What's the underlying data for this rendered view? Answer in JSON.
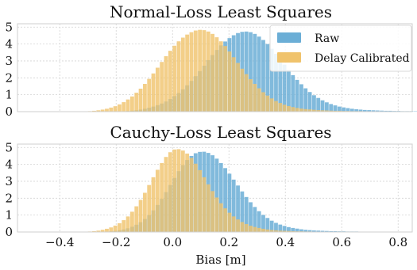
{
  "chart_data": [
    {
      "type": "bar",
      "title": "Normal-Loss Least Squares",
      "xlabel": "",
      "ylabel": "",
      "xlim": [
        -0.55,
        0.85
      ],
      "ylim": [
        0,
        5.2
      ],
      "yticks": [
        "0",
        "1",
        "2",
        "3",
        "4",
        "5"
      ],
      "xticks": [],
      "grid": true,
      "legend_position": "top-right",
      "bin_width": 0.015,
      "series": [
        {
          "name": "Raw",
          "color": "#6baed6",
          "bin_start": -0.18,
          "values": [
            0.02,
            0.04,
            0.06,
            0.08,
            0.12,
            0.17,
            0.23,
            0.3,
            0.38,
            0.48,
            0.6,
            0.75,
            0.92,
            1.1,
            1.32,
            1.56,
            1.82,
            2.1,
            2.4,
            2.72,
            3.05,
            3.35,
            3.65,
            3.92,
            4.15,
            4.35,
            4.52,
            4.65,
            4.72,
            4.74,
            4.7,
            4.6,
            4.44,
            4.24,
            4.0,
            3.72,
            3.42,
            3.1,
            2.78,
            2.46,
            2.16,
            1.88,
            1.62,
            1.38,
            1.16,
            0.97,
            0.81,
            0.67,
            0.55,
            0.45,
            0.37,
            0.3,
            0.25,
            0.21,
            0.17,
            0.14,
            0.12,
            0.1,
            0.09,
            0.08,
            0.07,
            0.06,
            0.05,
            0.05,
            0.04,
            0.04,
            0.03,
            0.03,
            0.03,
            0.02,
            0.02,
            0.02,
            0.02,
            0.01,
            0.01,
            0.01,
            0.01,
            0.01,
            0.01,
            0.01
          ]
        },
        {
          "name": "Delay Calibrated",
          "color": "#f0c36c",
          "bin_start": -0.3,
          "values": [
            0.03,
            0.05,
            0.08,
            0.12,
            0.17,
            0.24,
            0.32,
            0.43,
            0.56,
            0.72,
            0.9,
            1.12,
            1.36,
            1.64,
            1.94,
            2.26,
            2.6,
            2.94,
            3.28,
            3.6,
            3.9,
            4.16,
            4.38,
            4.56,
            4.7,
            4.8,
            4.84,
            4.82,
            4.74,
            4.6,
            4.4,
            4.16,
            3.88,
            3.56,
            3.22,
            2.88,
            2.54,
            2.22,
            1.92,
            1.64,
            1.38,
            1.15,
            0.95,
            0.78,
            0.63,
            0.51,
            0.41,
            0.33,
            0.27,
            0.22,
            0.18,
            0.15,
            0.13,
            0.11,
            0.09,
            0.08,
            0.07,
            0.06,
            0.05,
            0.05,
            0.04,
            0.04,
            0.03,
            0.03,
            0.03,
            0.02,
            0.02,
            0.02,
            0.02,
            0.01,
            0.01,
            0.01
          ]
        }
      ]
    },
    {
      "type": "bar",
      "title": "Cauchy-Loss Least Squares",
      "xlabel": "Bias [m]",
      "ylabel": "",
      "xlim": [
        -0.55,
        0.85
      ],
      "ylim": [
        0,
        5.2
      ],
      "yticks": [
        "0",
        "1",
        "2",
        "3",
        "4",
        "5"
      ],
      "xticks": [
        {
          "value": -0.4,
          "label": "−0.4"
        },
        {
          "value": -0.2,
          "label": "−0.2"
        },
        {
          "value": 0.0,
          "label": "0.0"
        },
        {
          "value": 0.2,
          "label": "0.2"
        },
        {
          "value": 0.4,
          "label": "0.4"
        },
        {
          "value": 0.6,
          "label": "0.6"
        },
        {
          "value": 0.8,
          "label": "0.8"
        }
      ],
      "grid": true,
      "legend_position": "none",
      "bin_width": 0.015,
      "series": [
        {
          "name": "Raw",
          "color": "#6baed6",
          "bin_start": -0.24,
          "values": [
            0.02,
            0.04,
            0.06,
            0.1,
            0.15,
            0.22,
            0.31,
            0.43,
            0.58,
            0.77,
            1.0,
            1.28,
            1.6,
            1.96,
            2.36,
            2.78,
            3.2,
            3.6,
            3.96,
            4.26,
            4.5,
            4.66,
            4.74,
            4.75,
            4.68,
            4.54,
            4.34,
            4.08,
            3.78,
            3.45,
            3.1,
            2.75,
            2.4,
            2.07,
            1.76,
            1.48,
            1.23,
            1.01,
            0.83,
            0.67,
            0.54,
            0.44,
            0.36,
            0.29,
            0.24,
            0.2,
            0.16,
            0.13,
            0.11,
            0.09,
            0.08,
            0.07,
            0.06,
            0.05,
            0.05,
            0.04,
            0.04,
            0.03,
            0.03,
            0.03,
            0.02,
            0.02,
            0.02,
            0.02,
            0.01,
            0.01,
            0.01,
            0.01,
            0.01,
            0.01
          ]
        },
        {
          "name": "Delay Calibrated",
          "color": "#f0c36c",
          "bin_start": -0.3,
          "values": [
            0.03,
            0.05,
            0.08,
            0.13,
            0.19,
            0.27,
            0.38,
            0.52,
            0.7,
            0.92,
            1.2,
            1.52,
            1.9,
            2.32,
            2.78,
            3.24,
            3.68,
            4.08,
            4.44,
            4.72,
            4.88,
            4.9,
            4.82,
            4.64,
            4.38,
            4.04,
            3.66,
            3.24,
            2.82,
            2.42,
            2.04,
            1.7,
            1.4,
            1.14,
            0.92,
            0.74,
            0.59,
            0.47,
            0.37,
            0.3,
            0.24,
            0.19,
            0.15,
            0.12,
            0.1,
            0.08,
            0.07,
            0.06,
            0.05,
            0.04,
            0.04,
            0.03,
            0.03,
            0.02,
            0.02,
            0.02,
            0.01,
            0.01,
            0.01,
            0.01
          ]
        }
      ]
    }
  ]
}
